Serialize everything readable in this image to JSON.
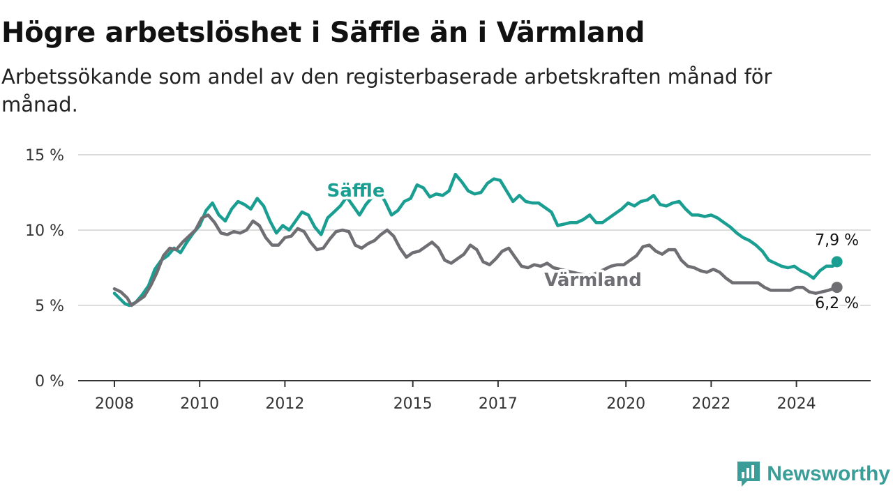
{
  "header": {
    "title": "Högre arbetslöshet i Säffle än i Värmland",
    "subtitle": "Arbetssökande som andel av den registerbaserade arbetskraften månad för månad."
  },
  "brand": {
    "name": "Newsworthy",
    "icon": "newsworthy-logo-icon",
    "color": "#3a9d98"
  },
  "chart_data": {
    "type": "line",
    "title": "Högre arbetslöshet i Säffle än i Värmland",
    "subtitle": "Arbetssökande som andel av den registerbaserade arbetskraften månad för månad.",
    "xlim": [
      2008,
      2025.5
    ],
    "ylim": [
      0,
      15
    ],
    "y_ticks": [
      0,
      5,
      10,
      15
    ],
    "y_tick_labels": [
      "0 %",
      "5 %",
      "10 %",
      "15 %"
    ],
    "x_ticks": [
      2008,
      2010,
      2012,
      2015,
      2017,
      2020,
      2022,
      2024
    ],
    "x_tick_labels": [
      "2008",
      "2010",
      "2012",
      "2015",
      "2017",
      "2020",
      "2022",
      "2024"
    ],
    "grid": "horizontal",
    "legend": "inline labels",
    "series": [
      {
        "name": "Säffle",
        "color": "#1a9e92",
        "end_label": "7,9 %",
        "points": [
          [
            2008.0,
            5.8
          ],
          [
            2008.25,
            5.1
          ],
          [
            2008.35,
            5.0
          ],
          [
            2008.5,
            5.2
          ],
          [
            2008.65,
            5.7
          ],
          [
            2008.8,
            6.3
          ],
          [
            2008.95,
            7.4
          ],
          [
            2009.1,
            8.0
          ],
          [
            2009.25,
            8.3
          ],
          [
            2009.4,
            8.8
          ],
          [
            2009.55,
            8.5
          ],
          [
            2009.7,
            9.2
          ],
          [
            2009.85,
            9.8
          ],
          [
            2010.0,
            10.3
          ],
          [
            2010.15,
            11.3
          ],
          [
            2010.3,
            11.8
          ],
          [
            2010.45,
            11.0
          ],
          [
            2010.6,
            10.6
          ],
          [
            2010.75,
            11.4
          ],
          [
            2010.9,
            11.9
          ],
          [
            2011.05,
            11.7
          ],
          [
            2011.2,
            11.4
          ],
          [
            2011.35,
            12.1
          ],
          [
            2011.5,
            11.6
          ],
          [
            2011.65,
            10.6
          ],
          [
            2011.8,
            9.8
          ],
          [
            2011.95,
            10.3
          ],
          [
            2012.1,
            10.0
          ],
          [
            2012.25,
            10.6
          ],
          [
            2012.4,
            11.2
          ],
          [
            2012.55,
            11.0
          ],
          [
            2012.7,
            10.2
          ],
          [
            2012.85,
            9.7
          ],
          [
            2013.0,
            10.8
          ],
          [
            2013.15,
            11.2
          ],
          [
            2013.3,
            11.6
          ],
          [
            2013.45,
            12.2
          ],
          [
            2013.6,
            11.6
          ],
          [
            2013.75,
            11.0
          ],
          [
            2013.9,
            11.7
          ],
          [
            2014.05,
            12.2
          ],
          [
            2014.2,
            12.6
          ],
          [
            2014.35,
            11.9
          ],
          [
            2014.5,
            11.0
          ],
          [
            2014.65,
            11.3
          ],
          [
            2014.8,
            11.9
          ],
          [
            2014.95,
            12.1
          ],
          [
            2015.1,
            13.0
          ],
          [
            2015.25,
            12.8
          ],
          [
            2015.4,
            12.2
          ],
          [
            2015.55,
            12.4
          ],
          [
            2015.7,
            12.3
          ],
          [
            2015.85,
            12.6
          ],
          [
            2016.0,
            13.7
          ],
          [
            2016.15,
            13.2
          ],
          [
            2016.3,
            12.6
          ],
          [
            2016.45,
            12.4
          ],
          [
            2016.6,
            12.5
          ],
          [
            2016.75,
            13.1
          ],
          [
            2016.9,
            13.4
          ],
          [
            2017.05,
            13.3
          ],
          [
            2017.2,
            12.6
          ],
          [
            2017.35,
            11.9
          ],
          [
            2017.5,
            12.3
          ],
          [
            2017.65,
            11.9
          ],
          [
            2017.8,
            11.8
          ],
          [
            2017.95,
            11.8
          ],
          [
            2018.1,
            11.5
          ],
          [
            2018.25,
            11.2
          ],
          [
            2018.4,
            10.3
          ],
          [
            2018.55,
            10.4
          ],
          [
            2018.7,
            10.5
          ],
          [
            2018.85,
            10.5
          ],
          [
            2019.0,
            10.7
          ],
          [
            2019.15,
            11.0
          ],
          [
            2019.3,
            10.5
          ],
          [
            2019.45,
            10.5
          ],
          [
            2019.6,
            10.8
          ],
          [
            2019.75,
            11.1
          ],
          [
            2019.9,
            11.4
          ],
          [
            2020.05,
            11.8
          ],
          [
            2020.2,
            11.6
          ],
          [
            2020.35,
            11.9
          ],
          [
            2020.5,
            12.0
          ],
          [
            2020.65,
            12.3
          ],
          [
            2020.8,
            11.7
          ],
          [
            2020.95,
            11.6
          ],
          [
            2021.1,
            11.8
          ],
          [
            2021.25,
            11.9
          ],
          [
            2021.4,
            11.4
          ],
          [
            2021.55,
            11.0
          ],
          [
            2021.7,
            11.0
          ],
          [
            2021.85,
            10.9
          ],
          [
            2022.0,
            11.0
          ],
          [
            2022.15,
            10.8
          ],
          [
            2022.3,
            10.5
          ],
          [
            2022.45,
            10.2
          ],
          [
            2022.6,
            9.8
          ],
          [
            2022.75,
            9.5
          ],
          [
            2022.9,
            9.3
          ],
          [
            2023.05,
            9.0
          ],
          [
            2023.2,
            8.6
          ],
          [
            2023.35,
            8.0
          ],
          [
            2023.5,
            7.8
          ],
          [
            2023.65,
            7.6
          ],
          [
            2023.8,
            7.5
          ],
          [
            2023.95,
            7.6
          ],
          [
            2024.1,
            7.3
          ],
          [
            2024.25,
            7.1
          ],
          [
            2024.4,
            6.8
          ],
          [
            2024.55,
            7.3
          ],
          [
            2024.7,
            7.6
          ],
          [
            2024.85,
            7.6
          ],
          [
            2024.95,
            7.9
          ]
        ]
      },
      {
        "name": "Värmland",
        "color": "#6e6e73",
        "end_label": "6,2 %",
        "points": [
          [
            2008.0,
            6.1
          ],
          [
            2008.15,
            5.9
          ],
          [
            2008.3,
            5.5
          ],
          [
            2008.4,
            5.0
          ],
          [
            2008.55,
            5.3
          ],
          [
            2008.7,
            5.6
          ],
          [
            2008.85,
            6.3
          ],
          [
            2009.0,
            7.2
          ],
          [
            2009.15,
            8.3
          ],
          [
            2009.3,
            8.8
          ],
          [
            2009.45,
            8.7
          ],
          [
            2009.6,
            9.2
          ],
          [
            2009.75,
            9.6
          ],
          [
            2009.9,
            10.0
          ],
          [
            2010.05,
            10.8
          ],
          [
            2010.2,
            11.0
          ],
          [
            2010.35,
            10.5
          ],
          [
            2010.5,
            9.8
          ],
          [
            2010.65,
            9.7
          ],
          [
            2010.8,
            9.9
          ],
          [
            2010.95,
            9.8
          ],
          [
            2011.1,
            10.0
          ],
          [
            2011.25,
            10.6
          ],
          [
            2011.4,
            10.3
          ],
          [
            2011.55,
            9.5
          ],
          [
            2011.7,
            9.0
          ],
          [
            2011.85,
            9.0
          ],
          [
            2012.0,
            9.5
          ],
          [
            2012.15,
            9.6
          ],
          [
            2012.3,
            10.1
          ],
          [
            2012.45,
            9.9
          ],
          [
            2012.6,
            9.2
          ],
          [
            2012.75,
            8.7
          ],
          [
            2012.9,
            8.8
          ],
          [
            2013.05,
            9.4
          ],
          [
            2013.2,
            9.9
          ],
          [
            2013.35,
            10.0
          ],
          [
            2013.5,
            9.9
          ],
          [
            2013.65,
            9.0
          ],
          [
            2013.8,
            8.8
          ],
          [
            2013.95,
            9.1
          ],
          [
            2014.1,
            9.3
          ],
          [
            2014.25,
            9.7
          ],
          [
            2014.4,
            10.0
          ],
          [
            2014.55,
            9.6
          ],
          [
            2014.7,
            8.8
          ],
          [
            2014.85,
            8.2
          ],
          [
            2015.0,
            8.5
          ],
          [
            2015.15,
            8.6
          ],
          [
            2015.3,
            8.9
          ],
          [
            2015.45,
            9.2
          ],
          [
            2015.6,
            8.8
          ],
          [
            2015.75,
            8.0
          ],
          [
            2015.9,
            7.8
          ],
          [
            2016.05,
            8.1
          ],
          [
            2016.2,
            8.4
          ],
          [
            2016.35,
            9.0
          ],
          [
            2016.5,
            8.7
          ],
          [
            2016.65,
            7.9
          ],
          [
            2016.8,
            7.7
          ],
          [
            2016.95,
            8.1
          ],
          [
            2017.1,
            8.6
          ],
          [
            2017.25,
            8.8
          ],
          [
            2017.4,
            8.2
          ],
          [
            2017.55,
            7.6
          ],
          [
            2017.7,
            7.5
          ],
          [
            2017.85,
            7.7
          ],
          [
            2018.0,
            7.6
          ],
          [
            2018.15,
            7.8
          ],
          [
            2018.3,
            7.5
          ],
          [
            2018.45,
            7.4
          ],
          [
            2018.6,
            7.3
          ],
          [
            2018.75,
            7.2
          ],
          [
            2018.9,
            7.1
          ],
          [
            2019.05,
            7.0
          ],
          [
            2019.2,
            7.0
          ],
          [
            2019.35,
            7.2
          ],
          [
            2019.5,
            7.4
          ],
          [
            2019.65,
            7.6
          ],
          [
            2019.8,
            7.7
          ],
          [
            2019.95,
            7.7
          ],
          [
            2020.1,
            8.0
          ],
          [
            2020.25,
            8.3
          ],
          [
            2020.4,
            8.9
          ],
          [
            2020.55,
            9.0
          ],
          [
            2020.7,
            8.6
          ],
          [
            2020.85,
            8.4
          ],
          [
            2021.0,
            8.7
          ],
          [
            2021.15,
            8.7
          ],
          [
            2021.3,
            8.0
          ],
          [
            2021.45,
            7.6
          ],
          [
            2021.6,
            7.5
          ],
          [
            2021.75,
            7.3
          ],
          [
            2021.9,
            7.2
          ],
          [
            2022.05,
            7.4
          ],
          [
            2022.2,
            7.2
          ],
          [
            2022.35,
            6.8
          ],
          [
            2022.5,
            6.5
          ],
          [
            2022.65,
            6.5
          ],
          [
            2022.8,
            6.5
          ],
          [
            2022.95,
            6.5
          ],
          [
            2023.1,
            6.5
          ],
          [
            2023.25,
            6.2
          ],
          [
            2023.4,
            6.0
          ],
          [
            2023.55,
            6.0
          ],
          [
            2023.7,
            6.0
          ],
          [
            2023.85,
            6.0
          ],
          [
            2024.0,
            6.2
          ],
          [
            2024.15,
            6.2
          ],
          [
            2024.3,
            5.9
          ],
          [
            2024.45,
            5.8
          ],
          [
            2024.6,
            5.9
          ],
          [
            2024.75,
            6.0
          ],
          [
            2024.95,
            6.2
          ]
        ]
      }
    ]
  }
}
